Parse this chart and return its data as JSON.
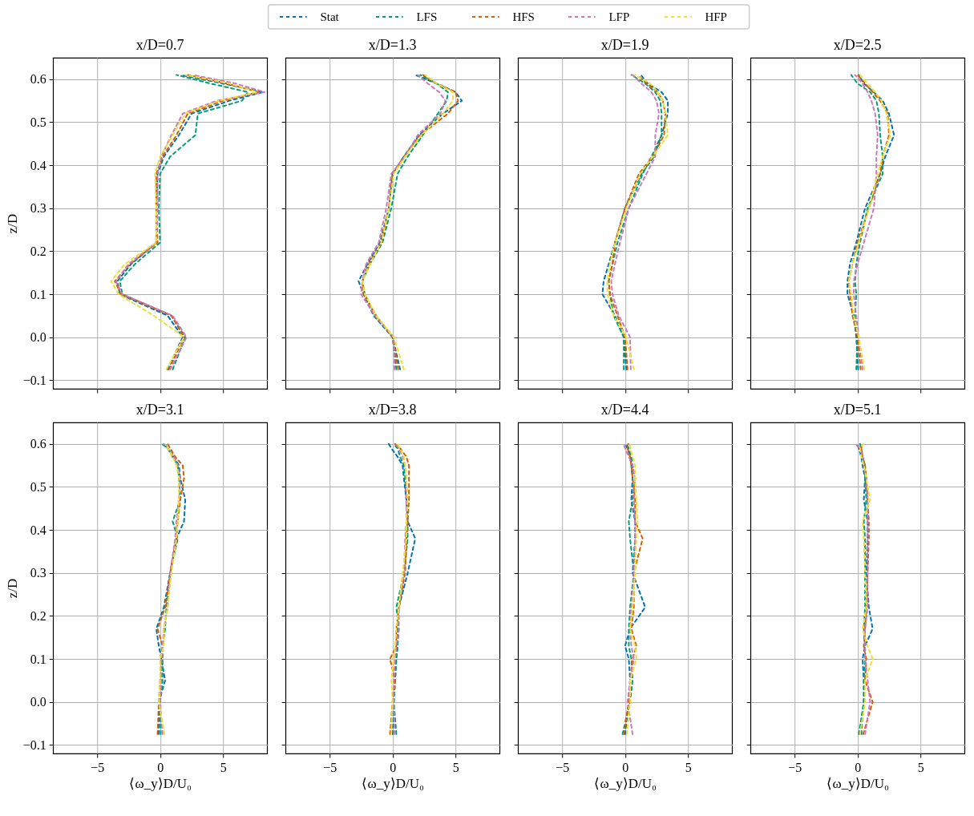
{
  "chart_data": [
    {
      "type": "line",
      "title": "x/D=0.7",
      "ylabel": "z/D",
      "xlim": [
        -8.5,
        8.5
      ],
      "ylim": [
        -0.12,
        0.65
      ],
      "xticks": [
        -5,
        0,
        5
      ],
      "yticks": [
        -0.1,
        {
          "value": 0,
          "label": "0.0"
        },
        0.1,
        0.2,
        0.3,
        0.4,
        0.5,
        0.6
      ],
      "grid": true,
      "legend": "top",
      "line_style": "dashed",
      "tick_labels": "y",
      "series": [
        {
          "name": "Stat",
          "color": "#0173b2",
          "x": [
            0.6,
            1.8,
            0.6,
            -3.2,
            -3.4,
            -2.3,
            -0.3,
            -0.3,
            -0.2,
            0.3,
            1.5,
            2.5,
            5.5,
            8.2,
            5.0,
            1.6
          ],
          "values": [
            -0.075,
            0,
            0.05,
            0.1,
            0.13,
            0.17,
            0.22,
            0.3,
            0.38,
            0.42,
            0.47,
            0.52,
            0.55,
            0.57,
            0.59,
            0.61
          ]
        },
        {
          "name": "LFS",
          "color": "#029e73",
          "x": [
            1.0,
            2.0,
            0.9,
            -3.0,
            -3.2,
            -2.0,
            0.0,
            -0.1,
            0.0,
            0.8,
            2.8,
            3.0,
            6.5,
            7.0,
            4.0,
            1.3
          ],
          "values": [
            -0.075,
            0,
            0.05,
            0.1,
            0.13,
            0.17,
            0.22,
            0.3,
            0.38,
            0.42,
            0.47,
            0.52,
            0.55,
            0.57,
            0.59,
            0.61
          ]
        },
        {
          "name": "HFS",
          "color": "#d55e00",
          "x": [
            0.7,
            1.9,
            0.9,
            -3.1,
            -3.6,
            -2.4,
            -0.2,
            -0.3,
            -0.3,
            0.2,
            1.3,
            2.2,
            5.0,
            7.8,
            5.3,
            2.2
          ],
          "values": [
            -0.075,
            0,
            0.05,
            0.1,
            0.13,
            0.17,
            0.22,
            0.3,
            0.38,
            0.42,
            0.47,
            0.52,
            0.55,
            0.57,
            0.59,
            0.61
          ]
        },
        {
          "name": "LFP",
          "color": "#cc78bc",
          "x": [
            0.8,
            2.1,
            1.0,
            -3.0,
            -3.5,
            -2.5,
            -0.3,
            -0.2,
            -0.2,
            0.1,
            0.9,
            1.8,
            4.5,
            8.3,
            6.0,
            2.6
          ],
          "values": [
            -0.075,
            0,
            0.05,
            0.1,
            0.13,
            0.17,
            0.22,
            0.3,
            0.38,
            0.42,
            0.47,
            0.52,
            0.55,
            0.57,
            0.59,
            0.61
          ]
        },
        {
          "name": "HFP",
          "color": "#ece133",
          "x": [
            0.5,
            1.9,
            -0.5,
            -3.3,
            -3.9,
            -2.8,
            -0.3,
            -0.3,
            -0.4,
            0.0,
            1.0,
            2.0,
            4.7,
            7.7,
            5.5,
            2.0
          ],
          "values": [
            -0.075,
            0,
            0.05,
            0.1,
            0.13,
            0.17,
            0.22,
            0.3,
            0.38,
            0.42,
            0.47,
            0.52,
            0.55,
            0.57,
            0.59,
            0.61
          ]
        }
      ]
    },
    {
      "type": "line",
      "title": "x/D=1.3",
      "xlim": [
        -8.5,
        8.5
      ],
      "ylim": [
        -0.12,
        0.65
      ],
      "xticks": [
        -5,
        0,
        5
      ],
      "yticks": [
        -0.1,
        0.0,
        0.1,
        0.2,
        0.3,
        0.4,
        0.5,
        0.6
      ],
      "grid": true,
      "line_style": "dashed",
      "tick_labels": false,
      "series": [
        {
          "color": "#0173b2",
          "x": [
            0.6,
            0.0,
            -1.5,
            -2.3,
            -2.7,
            -2.0,
            -1.0,
            -0.3,
            0.0,
            0.9,
            2.1,
            4.0,
            5.5,
            5.0,
            3.5,
            1.8
          ],
          "values": [
            -0.075,
            0,
            0.05,
            0.1,
            0.13,
            0.17,
            0.22,
            0.3,
            0.38,
            0.42,
            0.47,
            0.52,
            0.55,
            0.57,
            0.59,
            0.61
          ]
        },
        {
          "color": "#029e73",
          "x": [
            0.3,
            0.0,
            -1.4,
            -2.2,
            -2.4,
            -1.8,
            -0.8,
            -0.1,
            0.4,
            1.2,
            2.4,
            3.6,
            4.3,
            4.4,
            3.5,
            2.2
          ],
          "values": [
            -0.075,
            0,
            0.05,
            0.1,
            0.13,
            0.17,
            0.22,
            0.3,
            0.38,
            0.42,
            0.47,
            0.52,
            0.55,
            0.57,
            0.59,
            0.61
          ]
        },
        {
          "color": "#d55e00",
          "x": [
            0.45,
            0.0,
            -1.3,
            -2.3,
            -2.4,
            -1.9,
            -0.9,
            -0.3,
            0.0,
            0.9,
            2.2,
            4.4,
            5.2,
            5.0,
            3.5,
            2.4
          ],
          "values": [
            -0.075,
            0,
            0.05,
            0.1,
            0.13,
            0.17,
            0.22,
            0.3,
            0.38,
            0.42,
            0.47,
            0.52,
            0.55,
            0.57,
            0.59,
            0.61
          ]
        },
        {
          "color": "#cc78bc",
          "x": [
            0.15,
            0.1,
            -1.4,
            -2.5,
            -2.4,
            -2.1,
            -1.1,
            -0.5,
            -0.1,
            1.0,
            2.0,
            3.8,
            4.2,
            3.7,
            2.8,
            2.0
          ],
          "values": [
            -0.075,
            0,
            0.05,
            0.1,
            0.13,
            0.17,
            0.22,
            0.3,
            0.38,
            0.42,
            0.47,
            0.52,
            0.55,
            0.57,
            0.59,
            0.61
          ]
        },
        {
          "color": "#ece133",
          "x": [
            0.9,
            0.1,
            -1.3,
            -2.2,
            -2.4,
            -1.8,
            -0.9,
            -0.3,
            0.1,
            1.0,
            2.3,
            4.0,
            4.8,
            4.8,
            3.5,
            2.6
          ],
          "values": [
            -0.075,
            0,
            0.05,
            0.1,
            0.13,
            0.17,
            0.22,
            0.3,
            0.38,
            0.42,
            0.47,
            0.52,
            0.55,
            0.57,
            0.59,
            0.61
          ]
        }
      ]
    },
    {
      "type": "line",
      "title": "x/D=1.9",
      "xlim": [
        -8.5,
        8.5
      ],
      "ylim": [
        -0.12,
        0.65
      ],
      "xticks": [
        -5,
        0,
        5
      ],
      "yticks": [
        -0.1,
        0.0,
        0.1,
        0.2,
        0.3,
        0.4,
        0.5,
        0.6
      ],
      "grid": true,
      "line_style": "dashed",
      "tick_labels": false,
      "series": [
        {
          "color": "#0173b2",
          "x": [
            0.1,
            -0.1,
            -0.8,
            -1.8,
            -1.7,
            -1.3,
            -0.8,
            0.0,
            1.3,
            2.3,
            2.9,
            3.4,
            3.4,
            2.9,
            1.8,
            1.25
          ],
          "values": [
            -0.075,
            0,
            0.05,
            0.1,
            0.13,
            0.17,
            0.22,
            0.3,
            0.38,
            0.42,
            0.47,
            0.52,
            0.55,
            0.57,
            0.59,
            0.61
          ]
        },
        {
          "color": "#029e73",
          "x": [
            -0.1,
            -0.1,
            -0.9,
            -1.2,
            -1.3,
            -1.0,
            -0.6,
            0.3,
            1.4,
            2.1,
            2.9,
            2.9,
            2.8,
            2.4,
            1.6,
            0.5
          ],
          "values": [
            -0.075,
            0,
            0.05,
            0.1,
            0.13,
            0.17,
            0.22,
            0.3,
            0.38,
            0.42,
            0.47,
            0.52,
            0.55,
            0.57,
            0.59,
            0.61
          ]
        },
        {
          "color": "#d55e00",
          "x": [
            0.2,
            0.0,
            -0.6,
            -1.2,
            -1.3,
            -1.0,
            -0.8,
            0.0,
            1.1,
            2.2,
            3.1,
            3.2,
            3.0,
            2.6,
            1.7,
            1.0
          ],
          "values": [
            -0.075,
            0,
            0.05,
            0.1,
            0.13,
            0.17,
            0.22,
            0.3,
            0.38,
            0.42,
            0.47,
            0.52,
            0.55,
            0.57,
            0.59,
            0.61
          ]
        },
        {
          "color": "#cc78bc",
          "x": [
            0.45,
            0.4,
            -0.5,
            -1.0,
            -1.1,
            -0.8,
            -0.4,
            0.3,
            1.7,
            2.4,
            2.4,
            2.7,
            2.5,
            2.1,
            1.3,
            0.6
          ],
          "values": [
            -0.075,
            0,
            0.05,
            0.1,
            0.13,
            0.17,
            0.22,
            0.3,
            0.38,
            0.42,
            0.47,
            0.52,
            0.55,
            0.57,
            0.59,
            0.61
          ]
        },
        {
          "color": "#ece133",
          "x": [
            0.7,
            0.1,
            -0.9,
            -1.4,
            -1.4,
            -1.2,
            -0.8,
            0.1,
            1.2,
            2.2,
            3.4,
            3.2,
            3.0,
            2.6,
            2.0,
            0.8
          ],
          "values": [
            -0.075,
            0,
            0.05,
            0.1,
            0.13,
            0.17,
            0.22,
            0.3,
            0.38,
            0.42,
            0.47,
            0.52,
            0.55,
            0.57,
            0.59,
            0.61
          ]
        }
      ]
    },
    {
      "type": "line",
      "title": "x/D=2.5",
      "xlim": [
        -8.5,
        8.5
      ],
      "ylim": [
        -0.12,
        0.65
      ],
      "xticks": [
        -5,
        0,
        5
      ],
      "yticks": [
        -0.1,
        0.0,
        0.1,
        0.2,
        0.3,
        0.4,
        0.5,
        0.6
      ],
      "grid": true,
      "line_style": "dashed",
      "tick_labels": false,
      "series": [
        {
          "color": "#0173b2",
          "x": [
            0.05,
            -0.1,
            -0.3,
            -0.8,
            -0.8,
            -0.6,
            -0.1,
            0.6,
            1.8,
            2.2,
            2.9,
            2.5,
            2.0,
            1.3,
            0.5,
            0.1
          ],
          "values": [
            -0.075,
            0,
            0.05,
            0.1,
            0.13,
            0.17,
            0.22,
            0.3,
            0.38,
            0.42,
            0.47,
            0.52,
            0.55,
            0.57,
            0.59,
            0.61
          ]
        },
        {
          "color": "#029e73",
          "x": [
            -0.1,
            0.0,
            -0.2,
            -0.1,
            -0.2,
            -0.1,
            0.2,
            0.8,
            2.0,
            2.0,
            1.8,
            1.7,
            1.5,
            1.0,
            0.0,
            -0.5
          ],
          "values": [
            -0.075,
            0,
            0.05,
            0.1,
            0.13,
            0.17,
            0.22,
            0.3,
            0.38,
            0.42,
            0.47,
            0.52,
            0.55,
            0.57,
            0.59,
            0.61
          ]
        },
        {
          "color": "#d55e00",
          "x": [
            0.25,
            0.0,
            -0.4,
            -0.6,
            -0.7,
            -0.4,
            0.0,
            0.9,
            1.8,
            2.0,
            2.5,
            2.4,
            1.8,
            1.2,
            0.6,
            0.0
          ],
          "values": [
            -0.075,
            0,
            0.05,
            0.1,
            0.13,
            0.17,
            0.22,
            0.3,
            0.38,
            0.42,
            0.47,
            0.52,
            0.55,
            0.57,
            0.59,
            0.61
          ]
        },
        {
          "color": "#cc78bc",
          "x": [
            0.4,
            0.1,
            -0.1,
            -0.3,
            -0.3,
            0.0,
            0.5,
            1.3,
            1.5,
            1.5,
            1.6,
            1.4,
            1.1,
            0.8,
            0.4,
            -0.2
          ],
          "values": [
            -0.075,
            0,
            0.05,
            0.1,
            0.13,
            0.17,
            0.22,
            0.3,
            0.38,
            0.42,
            0.47,
            0.52,
            0.55,
            0.57,
            0.59,
            0.61
          ]
        },
        {
          "color": "#ece133",
          "x": [
            0.55,
            0.1,
            -0.3,
            -0.5,
            -0.7,
            -0.4,
            0.1,
            0.9,
            1.6,
            2.0,
            2.6,
            2.3,
            1.9,
            1.4,
            0.8,
            0.2
          ],
          "values": [
            -0.075,
            0,
            0.05,
            0.1,
            0.13,
            0.17,
            0.22,
            0.3,
            0.38,
            0.42,
            0.47,
            0.52,
            0.55,
            0.57,
            0.59,
            0.61
          ]
        }
      ]
    },
    {
      "type": "line",
      "title": "x/D=3.1",
      "xlabel": "⟨ω_y⟩D/U₀",
      "ylabel": "z/D",
      "xlim": [
        -8.5,
        8.5
      ],
      "ylim": [
        -0.12,
        0.65
      ],
      "xticks": [
        -5,
        0,
        5
      ],
      "yticks": [
        -0.1,
        {
          "value": 0,
          "label": "0.0"
        },
        0.1,
        0.2,
        0.3,
        0.4,
        0.5,
        0.6
      ],
      "grid": true,
      "line_style": "dashed",
      "series": [
        {
          "color": "#0173b2",
          "x": [
            -0.1,
            -0.1,
            0.4,
            0.1,
            -0.1,
            -0.3,
            0.3,
            0.8,
            1.3,
            1.9,
            2.0,
            1.6,
            1.5,
            1.1,
            0.6,
            0.4
          ],
          "values": [
            -0.075,
            0,
            0.05,
            0.1,
            0.13,
            0.17,
            0.22,
            0.3,
            0.38,
            0.42,
            0.47,
            0.52,
            0.55,
            0.57,
            0.59,
            0.6
          ]
        },
        {
          "color": "#029e73",
          "x": [
            0.05,
            0.0,
            0.2,
            0.2,
            0.2,
            0.4,
            0.5,
            0.8,
            1.4,
            1.0,
            1.6,
            1.5,
            1.4,
            1.0,
            0.6,
            0.15
          ],
          "values": [
            -0.075,
            0,
            0.05,
            0.1,
            0.13,
            0.17,
            0.22,
            0.3,
            0.38,
            0.42,
            0.47,
            0.52,
            0.55,
            0.57,
            0.59,
            0.6
          ]
        },
        {
          "color": "#d55e00",
          "x": [
            -0.2,
            -0.1,
            0.0,
            0.1,
            0.2,
            -0.2,
            0.4,
            0.8,
            1.3,
            1.4,
            1.6,
            1.9,
            1.8,
            1.2,
            0.8,
            0.6
          ],
          "values": [
            -0.075,
            0,
            0.05,
            0.1,
            0.13,
            0.17,
            0.22,
            0.3,
            0.38,
            0.42,
            0.47,
            0.52,
            0.55,
            0.57,
            0.59,
            0.6
          ]
        },
        {
          "color": "#cc78bc",
          "x": [
            0.2,
            0.0,
            0.1,
            0.1,
            0.2,
            0.3,
            0.6,
            0.8,
            1.2,
            1.3,
            1.5,
            1.6,
            1.4,
            1.1,
            0.6,
            0.3
          ],
          "values": [
            -0.075,
            0,
            0.05,
            0.1,
            0.13,
            0.17,
            0.22,
            0.3,
            0.38,
            0.42,
            0.47,
            0.52,
            0.55,
            0.57,
            0.59,
            0.6
          ]
        },
        {
          "color": "#ece133",
          "x": [
            0.35,
            -0.1,
            0.0,
            0.0,
            0.3,
            0.3,
            0.6,
            0.9,
            1.3,
            1.4,
            1.5,
            1.5,
            1.3,
            1.0,
            0.6,
            0.5
          ],
          "values": [
            -0.075,
            0,
            0.05,
            0.1,
            0.13,
            0.17,
            0.22,
            0.3,
            0.38,
            0.42,
            0.47,
            0.52,
            0.55,
            0.57,
            0.59,
            0.6
          ]
        }
      ]
    },
    {
      "type": "line",
      "title": "x/D=3.8",
      "xlabel": "⟨ω_y⟩D/U₀",
      "xlim": [
        -8.5,
        8.5
      ],
      "ylim": [
        -0.12,
        0.65
      ],
      "xticks": [
        -5,
        0,
        5
      ],
      "yticks": [
        -0.1,
        0.0,
        0.1,
        0.2,
        0.3,
        0.4,
        0.5,
        0.6
      ],
      "grid": true,
      "line_style": "dashed",
      "tick_labels": "x",
      "series": [
        {
          "color": "#0173b2",
          "x": [
            0.0,
            0.1,
            0.2,
            0.3,
            0.4,
            0.4,
            0.5,
            1.2,
            1.8,
            1.2,
            1.1,
            0.9,
            0.8,
            0.4,
            -0.1,
            -0.3
          ],
          "values": [
            -0.075,
            0,
            0.05,
            0.1,
            0.13,
            0.17,
            0.22,
            0.3,
            0.38,
            0.42,
            0.47,
            0.52,
            0.55,
            0.57,
            0.59,
            0.6
          ]
        },
        {
          "color": "#029e73",
          "x": [
            0.3,
            0.1,
            0.2,
            0.3,
            0.4,
            0.5,
            0.3,
            0.9,
            1.2,
            1.2,
            1.1,
            1.0,
            0.9,
            0.6,
            0.4,
            0.05
          ],
          "values": [
            -0.075,
            0,
            0.05,
            0.1,
            0.13,
            0.17,
            0.22,
            0.3,
            0.38,
            0.42,
            0.47,
            0.52,
            0.55,
            0.57,
            0.59,
            0.6
          ]
        },
        {
          "color": "#d55e00",
          "x": [
            -0.2,
            0.0,
            0.2,
            -0.2,
            0.3,
            0.3,
            0.5,
            1.0,
            1.1,
            1.2,
            1.3,
            1.3,
            1.3,
            1.1,
            0.6,
            0.2
          ],
          "values": [
            -0.075,
            0,
            0.05,
            0.1,
            0.13,
            0.17,
            0.22,
            0.3,
            0.38,
            0.42,
            0.47,
            0.52,
            0.55,
            0.57,
            0.59,
            0.6
          ]
        },
        {
          "color": "#cc78bc",
          "x": [
            0.15,
            0.1,
            0.1,
            0.2,
            0.3,
            0.5,
            0.5,
            0.9,
            1.0,
            1.1,
            1.1,
            1.1,
            1.0,
            0.8,
            0.5,
            0.3
          ],
          "values": [
            -0.075,
            0,
            0.05,
            0.1,
            0.13,
            0.17,
            0.22,
            0.3,
            0.38,
            0.42,
            0.47,
            0.52,
            0.55,
            0.57,
            0.59,
            0.6
          ]
        },
        {
          "color": "#ece133",
          "x": [
            -0.1,
            0.0,
            -0.1,
            0.1,
            0.2,
            0.3,
            0.5,
            0.8,
            1.1,
            1.1,
            1.2,
            1.1,
            1.0,
            0.9,
            0.6,
            0.4
          ],
          "values": [
            -0.075,
            0,
            0.05,
            0.1,
            0.13,
            0.17,
            0.22,
            0.3,
            0.38,
            0.42,
            0.47,
            0.52,
            0.55,
            0.57,
            0.59,
            0.6
          ]
        }
      ]
    },
    {
      "type": "line",
      "title": "x/D=4.4",
      "xlabel": "⟨ω_y⟩D/U₀",
      "xlim": [
        -8.5,
        8.5
      ],
      "ylim": [
        -0.12,
        0.65
      ],
      "xticks": [
        -5,
        0,
        5
      ],
      "yticks": [
        -0.1,
        0.0,
        0.1,
        0.2,
        0.3,
        0.4,
        0.5,
        0.6
      ],
      "grid": true,
      "line_style": "dashed",
      "tick_labels": "x",
      "series": [
        {
          "color": "#0173b2",
          "x": [
            0.0,
            0.3,
            0.4,
            0.3,
            0.0,
            0.4,
            1.6,
            0.6,
            0.8,
            0.8,
            0.5,
            0.6,
            0.5,
            0.4,
            0.2,
            0.0
          ],
          "values": [
            -0.075,
            0,
            0.05,
            0.1,
            0.13,
            0.17,
            0.22,
            0.3,
            0.38,
            0.42,
            0.47,
            0.52,
            0.55,
            0.57,
            0.59,
            0.6
          ]
        },
        {
          "color": "#029e73",
          "x": [
            -0.2,
            0.4,
            0.6,
            0.5,
            0.3,
            0.3,
            0.4,
            0.7,
            0.4,
            0.3,
            0.6,
            0.8,
            0.6,
            0.5,
            0.3,
            0.1
          ],
          "values": [
            -0.075,
            0,
            0.05,
            0.1,
            0.13,
            0.17,
            0.22,
            0.3,
            0.38,
            0.42,
            0.47,
            0.52,
            0.55,
            0.57,
            0.59,
            0.6
          ]
        },
        {
          "color": "#d55e00",
          "x": [
            -0.1,
            0.3,
            0.4,
            0.6,
            0.9,
            0.5,
            0.7,
            0.7,
            1.4,
            0.8,
            0.8,
            0.6,
            0.5,
            0.4,
            0.2,
            0.25
          ],
          "values": [
            -0.075,
            0,
            0.05,
            0.1,
            0.13,
            0.17,
            0.22,
            0.3,
            0.38,
            0.42,
            0.47,
            0.52,
            0.55,
            0.57,
            0.59,
            0.6
          ]
        },
        {
          "color": "#cc78bc",
          "x": [
            0.6,
            0.2,
            0.4,
            0.7,
            0.5,
            0.4,
            0.5,
            0.7,
            0.8,
            0.8,
            0.7,
            0.8,
            0.6,
            0.3,
            0.0,
            -0.1
          ],
          "values": [
            -0.075,
            0,
            0.05,
            0.1,
            0.13,
            0.17,
            0.22,
            0.3,
            0.38,
            0.42,
            0.47,
            0.52,
            0.55,
            0.57,
            0.59,
            0.6
          ]
        },
        {
          "color": "#ece133",
          "x": [
            0.15,
            0.4,
            0.4,
            0.9,
            0.8,
            0.4,
            0.6,
            0.8,
            0.9,
            1.0,
            0.9,
            0.8,
            0.8,
            0.6,
            0.4,
            0.4
          ],
          "values": [
            -0.075,
            0,
            0.05,
            0.1,
            0.13,
            0.17,
            0.22,
            0.3,
            0.38,
            0.42,
            0.47,
            0.52,
            0.55,
            0.57,
            0.59,
            0.6
          ]
        }
      ]
    },
    {
      "type": "line",
      "title": "x/D=5.1",
      "xlabel": "⟨ω_y⟩D/U₀",
      "xlim": [
        -8.5,
        8.5
      ],
      "ylim": [
        -0.12,
        0.65
      ],
      "xticks": [
        -5,
        0,
        5
      ],
      "yticks": [
        -0.1,
        0.0,
        0.1,
        0.2,
        0.3,
        0.4,
        0.5,
        0.6
      ],
      "grid": true,
      "line_style": "dashed",
      "tick_labels": "x",
      "series": [
        {
          "color": "#0173b2",
          "x": [
            0.3,
            0.5,
            0.5,
            0.4,
            0.6,
            1.2,
            0.9,
            0.7,
            0.8,
            0.8,
            0.5,
            0.6,
            0.4,
            0.3,
            0.1,
            0.0
          ],
          "values": [
            -0.075,
            0,
            0.05,
            0.1,
            0.13,
            0.17,
            0.22,
            0.3,
            0.38,
            0.42,
            0.47,
            0.52,
            0.55,
            0.57,
            0.59,
            0.6
          ]
        },
        {
          "color": "#029e73",
          "x": [
            0.1,
            0.5,
            0.5,
            0.6,
            0.6,
            0.5,
            0.6,
            0.6,
            0.6,
            0.5,
            0.7,
            0.6,
            0.6,
            0.4,
            0.3,
            0.2
          ],
          "values": [
            -0.075,
            0,
            0.05,
            0.1,
            0.13,
            0.17,
            0.22,
            0.3,
            0.38,
            0.42,
            0.47,
            0.52,
            0.55,
            0.57,
            0.59,
            0.6
          ]
        },
        {
          "color": "#d55e00",
          "x": [
            0.45,
            1.2,
            0.6,
            0.7,
            0.5,
            0.6,
            0.7,
            0.8,
            0.9,
            0.9,
            0.8,
            0.7,
            0.6,
            0.4,
            0.3,
            0.35
          ],
          "values": [
            -0.075,
            0,
            0.05,
            0.1,
            0.13,
            0.17,
            0.22,
            0.3,
            0.38,
            0.42,
            0.47,
            0.52,
            0.55,
            0.57,
            0.59,
            0.6
          ]
        },
        {
          "color": "#cc78bc",
          "x": [
            0.6,
            1.0,
            0.8,
            0.6,
            0.6,
            0.6,
            0.8,
            0.8,
            0.8,
            0.8,
            0.8,
            0.7,
            0.5,
            0.4,
            0.2,
            -0.2
          ],
          "values": [
            -0.075,
            0,
            0.05,
            0.1,
            0.13,
            0.17,
            0.22,
            0.3,
            0.38,
            0.42,
            0.47,
            0.52,
            0.55,
            0.57,
            0.59,
            0.6
          ]
        },
        {
          "color": "#ece133",
          "x": [
            0.2,
            0.6,
            0.6,
            1.2,
            0.8,
            0.4,
            0.7,
            0.6,
            0.5,
            0.4,
            1.0,
            0.7,
            0.5,
            0.3,
            0.2,
            0.5
          ],
          "values": [
            -0.075,
            0,
            0.05,
            0.1,
            0.13,
            0.17,
            0.22,
            0.3,
            0.38,
            0.42,
            0.47,
            0.52,
            0.55,
            0.57,
            0.59,
            0.6
          ]
        }
      ]
    }
  ]
}
